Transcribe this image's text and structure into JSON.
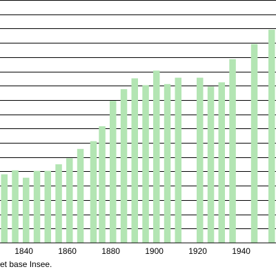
{
  "chart_data": {
    "type": "bar",
    "x": [
      1831,
      1836,
      1841,
      1846,
      1851,
      1856,
      1861,
      1866,
      1872,
      1876,
      1881,
      1886,
      1891,
      1896,
      1901,
      1906,
      1911,
      1921,
      1926,
      1931,
      1936,
      1946,
      1954
    ],
    "values": [
      240,
      254,
      228,
      252,
      252,
      275,
      296,
      329,
      356,
      408,
      497,
      538,
      576,
      552,
      603,
      556,
      578,
      578,
      547,
      562,
      643,
      696,
      746
    ],
    "xticks": [
      "1840",
      "1860",
      "1880",
      "1900",
      "1920",
      "1940"
    ],
    "xlim": [
      1829,
      1956
    ],
    "ylim": [
      0,
      850
    ],
    "ygrid_step": 50,
    "grid": true,
    "bar_color": "#b3e5b3",
    "grid_color": "#000000"
  },
  "source_note": "et base Insee."
}
